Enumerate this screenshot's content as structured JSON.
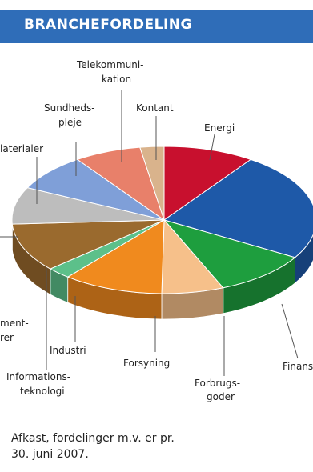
{
  "header": {
    "title": "BRANCHEFORDELING"
  },
  "chart_data": {
    "type": "pie",
    "title": "BRANCHEFORDELING",
    "slices": [
      {
        "label": "Energi",
        "value": 9.5,
        "color": "#c8102e"
      },
      {
        "label": "Finans",
        "value": 23.5,
        "color": "#1e59a8"
      },
      {
        "label": "Forbrugs-goder",
        "value": 10.0,
        "color": "#1e9e3e"
      },
      {
        "label": "Forsyning",
        "value": 6.5,
        "color": "#f6c08a"
      },
      {
        "label": "Industri",
        "value": 10.5,
        "color": "#f08a1e"
      },
      {
        "label": "Informations-teknologi",
        "value": 2.5,
        "color": "#5cc08a"
      },
      {
        "label": "Råvarer",
        "value": 10.5,
        "color": "#9a6a2e"
      },
      {
        "label": "Materialer",
        "value": 8.0,
        "color": "#bdbdbd"
      },
      {
        "label": "Sundheds-pleje",
        "value": 8.0,
        "color": "#7f9fd8"
      },
      {
        "label": "Telekommuni-kation",
        "value": 7.0,
        "color": "#e8806a"
      },
      {
        "label": "Kontant",
        "value": 2.5,
        "color": "#d9b38c"
      }
    ],
    "labels_display": {
      "energi": "Energi",
      "finans": "Finans",
      "forbrugs_1": "Forbrugs-",
      "forbrugs_2": "goder",
      "forsyning": "Forsyning",
      "industri": "Industri",
      "info_1": "Informations-",
      "info_2": "teknologi",
      "raavarer_1": "ment-",
      "raavarer_2": "rer",
      "materialer": "laterialer",
      "sund_1": "Sundheds-",
      "sund_2": "pleje",
      "tele_1": "Telekommuni-",
      "tele_2": "kation",
      "kontant": "Kontant"
    }
  },
  "footnote": {
    "line1": "Afkast, fordelinger m.v. er pr.",
    "line2": "30. juni 2007."
  }
}
